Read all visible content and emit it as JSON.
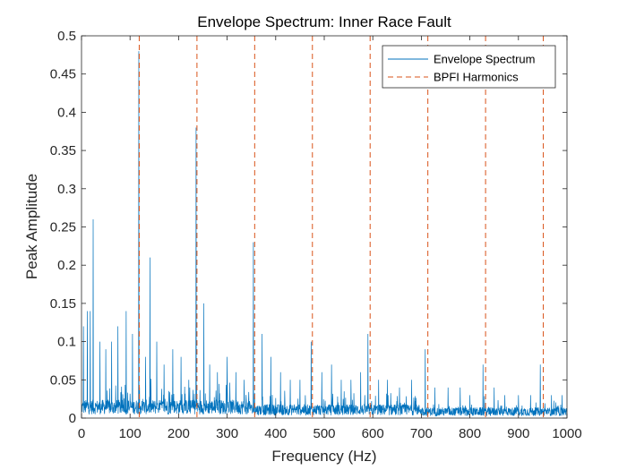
{
  "chart_data": {
    "type": "line",
    "title": "Envelope Spectrum: Inner Race Fault",
    "xlabel": "Frequency (Hz)",
    "ylabel": "Peak Amplitude",
    "xlim": [
      0,
      1000
    ],
    "ylim": [
      0,
      0.5
    ],
    "xticks": [
      0,
      100,
      200,
      300,
      400,
      500,
      600,
      700,
      800,
      900,
      1000
    ],
    "yticks": [
      0,
      0.05,
      0.1,
      0.15,
      0.2,
      0.25,
      0.3,
      0.35,
      0.4,
      0.45,
      0.5
    ],
    "ytick_labels": [
      "0",
      "0.05",
      "0.1",
      "0.15",
      "0.2",
      "0.25",
      "0.3",
      "0.35",
      "0.4",
      "0.45",
      "0.5"
    ],
    "grid": false,
    "legend_position": "top-right",
    "series": [
      {
        "name": "Envelope Spectrum",
        "color": "#0072BD",
        "style": "solid",
        "peaks": [
          [
            4,
            0.12
          ],
          [
            12,
            0.14
          ],
          [
            18,
            0.14
          ],
          [
            24,
            0.26
          ],
          [
            38,
            0.1
          ],
          [
            50,
            0.09
          ],
          [
            62,
            0.1
          ],
          [
            75,
            0.12
          ],
          [
            92,
            0.14
          ],
          [
            105,
            0.11
          ],
          [
            118,
            0.48
          ],
          [
            132,
            0.08
          ],
          [
            141,
            0.21
          ],
          [
            155,
            0.1
          ],
          [
            170,
            0.07
          ],
          [
            188,
            0.09
          ],
          [
            205,
            0.08
          ],
          [
            221,
            0.05
          ],
          [
            236,
            0.38
          ],
          [
            252,
            0.15
          ],
          [
            264,
            0.07
          ],
          [
            280,
            0.06
          ],
          [
            300,
            0.08
          ],
          [
            318,
            0.06
          ],
          [
            335,
            0.05
          ],
          [
            354,
            0.23
          ],
          [
            372,
            0.11
          ],
          [
            390,
            0.08
          ],
          [
            410,
            0.06
          ],
          [
            430,
            0.05
          ],
          [
            450,
            0.05
          ],
          [
            473,
            0.1
          ],
          [
            495,
            0.06
          ],
          [
            515,
            0.07
          ],
          [
            535,
            0.05
          ],
          [
            555,
            0.05
          ],
          [
            575,
            0.06
          ],
          [
            590,
            0.11
          ],
          [
            612,
            0.05
          ],
          [
            630,
            0.05
          ],
          [
            655,
            0.04
          ],
          [
            680,
            0.05
          ],
          [
            708,
            0.09
          ],
          [
            728,
            0.04
          ],
          [
            755,
            0.04
          ],
          [
            780,
            0.04
          ],
          [
            800,
            0.03
          ],
          [
            827,
            0.07
          ],
          [
            850,
            0.04
          ],
          [
            872,
            0.03
          ],
          [
            900,
            0.03
          ],
          [
            925,
            0.03
          ],
          [
            945,
            0.07
          ],
          [
            968,
            0.03
          ],
          [
            990,
            0.03
          ]
        ]
      },
      {
        "name": "BPFI Harmonics",
        "color": "#D95319",
        "style": "dashed",
        "x": [
          118.9,
          237.8,
          356.7,
          475.6,
          594.5,
          713.4,
          832.3,
          951.2
        ]
      }
    ]
  }
}
